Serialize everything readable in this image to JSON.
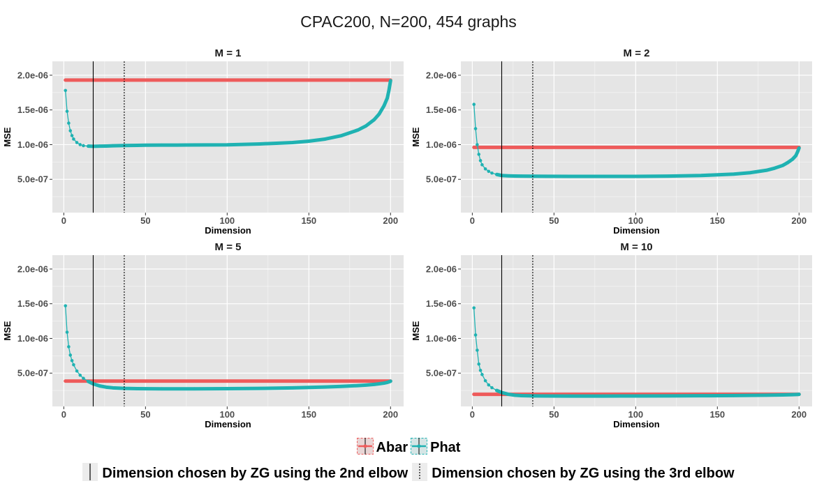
{
  "title": "CPAC200, N=200, 454 graphs",
  "colors": {
    "abar": "#ee5b5b",
    "phat": "#1fb2b2",
    "panel_bg": "#e5e5e5",
    "grid": "#ffffff"
  },
  "legend": {
    "series": [
      "Abar",
      "Phat"
    ],
    "vlines": [
      "Dimension chosen by ZG using the 2nd elbow",
      "Dimension chosen by ZG using the 3rd elbow"
    ]
  },
  "chart_data": [
    {
      "type": "line",
      "title": "M = 1",
      "xlabel": "Dimension",
      "ylabel": "MSE",
      "xlim": [
        -7,
        208
      ],
      "ylim": [
        2e-08,
        2.2e-06
      ],
      "xticks": [
        0,
        50,
        100,
        150,
        200
      ],
      "yticks": [
        5e-07,
        1e-06,
        1.5e-06,
        2e-06
      ],
      "ytick_labels": [
        "5.0e-07",
        "1.0e-06",
        "1.5e-06",
        "2.0e-06"
      ],
      "vlines": {
        "elbow2": 18,
        "elbow3": 37
      },
      "series": [
        {
          "name": "Abar",
          "x": [
            1,
            200
          ],
          "y": [
            1.93e-06,
            1.93e-06
          ]
        },
        {
          "name": "Phat",
          "x": [
            1,
            2,
            3,
            4,
            5,
            6,
            8,
            10,
            12,
            15,
            18,
            22,
            26,
            30,
            37,
            45,
            50,
            60,
            75,
            100,
            120,
            140,
            150,
            160,
            170,
            180,
            185,
            190,
            193,
            196,
            198,
            199,
            200
          ],
          "y": [
            1.78e-06,
            1.48e-06,
            1.31e-06,
            1.2e-06,
            1.13e-06,
            1.08e-06,
            1.03e-06,
            1e-06,
            9.85e-07,
            9.78e-07,
            9.76e-07,
            9.78e-07,
            9.8e-07,
            9.83e-07,
            9.87e-07,
            9.9e-07,
            9.92e-07,
            9.93e-07,
            9.94e-07,
            9.97e-07,
            1.01e-06,
            1.03e-06,
            1.05e-06,
            1.08e-06,
            1.13e-06,
            1.21e-06,
            1.27e-06,
            1.36e-06,
            1.44e-06,
            1.56e-06,
            1.67e-06,
            1.78e-06,
            1.92e-06
          ]
        }
      ]
    },
    {
      "type": "line",
      "title": "M = 2",
      "xlabel": "Dimension",
      "ylabel": "MSE",
      "xlim": [
        -7,
        208
      ],
      "ylim": [
        2e-08,
        2.2e-06
      ],
      "xticks": [
        0,
        50,
        100,
        150,
        200
      ],
      "yticks": [
        5e-07,
        1e-06,
        1.5e-06,
        2e-06
      ],
      "ytick_labels": [
        "5.0e-07",
        "1.0e-06",
        "1.5e-06",
        "2.0e-06"
      ],
      "vlines": {
        "elbow2": 18,
        "elbow3": 37
      },
      "series": [
        {
          "name": "Abar",
          "x": [
            1,
            200
          ],
          "y": [
            9.6e-07,
            9.6e-07
          ]
        },
        {
          "name": "Phat",
          "x": [
            1,
            2,
            3,
            4,
            5,
            6,
            8,
            10,
            12,
            15,
            18,
            22,
            26,
            30,
            37,
            45,
            60,
            80,
            100,
            120,
            140,
            160,
            170,
            180,
            185,
            190,
            193,
            196,
            198,
            199,
            200
          ],
          "y": [
            1.58e-06,
            1.23e-06,
            1e-06,
            8.6e-07,
            7.7e-07,
            7.1e-07,
            6.5e-07,
            6.15e-07,
            5.9e-07,
            5.7e-07,
            5.55e-07,
            5.5e-07,
            5.47e-07,
            5.46e-07,
            5.45e-07,
            5.44e-07,
            5.43e-07,
            5.42e-07,
            5.43e-07,
            5.46e-07,
            5.55e-07,
            5.75e-07,
            5.95e-07,
            6.3e-07,
            6.6e-07,
            7e-07,
            7.4e-07,
            7.9e-07,
            8.4e-07,
            8.9e-07,
            9.5e-07
          ]
        }
      ]
    },
    {
      "type": "line",
      "title": "M = 5",
      "xlabel": "Dimension",
      "ylabel": "MSE",
      "xlim": [
        -7,
        208
      ],
      "ylim": [
        2e-08,
        2.2e-06
      ],
      "xticks": [
        0,
        50,
        100,
        150,
        200
      ],
      "yticks": [
        5e-07,
        1e-06,
        1.5e-06,
        2e-06
      ],
      "ytick_labels": [
        "5.0e-07",
        "1.0e-06",
        "1.5e-06",
        "2.0e-06"
      ],
      "vlines": {
        "elbow2": 18,
        "elbow3": 37
      },
      "series": [
        {
          "name": "Abar",
          "x": [
            1,
            200
          ],
          "y": [
            3.85e-07,
            3.85e-07
          ]
        },
        {
          "name": "Phat",
          "x": [
            1,
            2,
            3,
            4,
            5,
            6,
            8,
            10,
            12,
            15,
            18,
            22,
            26,
            30,
            37,
            45,
            60,
            80,
            100,
            120,
            140,
            160,
            170,
            180,
            185,
            190,
            193,
            196,
            198,
            199,
            200
          ],
          "y": [
            1.47e-06,
            1.09e-06,
            8.8e-07,
            7.6e-07,
            6.8e-07,
            6.2e-07,
            5.3e-07,
            4.7e-07,
            4.25e-07,
            3.8e-07,
            3.45e-07,
            3.15e-07,
            2.98e-07,
            2.88e-07,
            2.8e-07,
            2.76e-07,
            2.74e-07,
            2.74e-07,
            2.76e-07,
            2.8e-07,
            2.88e-07,
            3e-07,
            3.09e-07,
            3.2e-07,
            3.28e-07,
            3.38e-07,
            3.46e-07,
            3.56e-07,
            3.66e-07,
            3.74e-07,
            3.84e-07
          ]
        }
      ]
    },
    {
      "type": "line",
      "title": "M = 10",
      "xlabel": "Dimension",
      "ylabel": "MSE",
      "xlim": [
        -7,
        208
      ],
      "ylim": [
        2e-08,
        2.2e-06
      ],
      "xticks": [
        0,
        50,
        100,
        150,
        200
      ],
      "yticks": [
        5e-07,
        1e-06,
        1.5e-06,
        2e-06
      ],
      "ytick_labels": [
        "5.0e-07",
        "1.0e-06",
        "1.5e-06",
        "2.0e-06"
      ],
      "vlines": {
        "elbow2": 18,
        "elbow3": 37
      },
      "series": [
        {
          "name": "Abar",
          "x": [
            1,
            200
          ],
          "y": [
            1.95e-07,
            1.95e-07
          ]
        },
        {
          "name": "Phat",
          "x": [
            1,
            2,
            3,
            4,
            5,
            6,
            8,
            10,
            12,
            15,
            18,
            22,
            26,
            30,
            37,
            45,
            60,
            80,
            100,
            120,
            140,
            160,
            180,
            190,
            196,
            200
          ],
          "y": [
            1.44e-06,
            1.05e-06,
            8.3e-07,
            6.3e-07,
            5.4e-07,
            4.8e-07,
            3.9e-07,
            3.3e-07,
            2.9e-07,
            2.5e-07,
            2.2e-07,
            1.95e-07,
            1.82e-07,
            1.76e-07,
            1.72e-07,
            1.71e-07,
            1.7e-07,
            1.7e-07,
            1.71e-07,
            1.72e-07,
            1.74e-07,
            1.77e-07,
            1.82e-07,
            1.86e-07,
            1.9e-07,
            1.94e-07
          ]
        }
      ]
    }
  ]
}
